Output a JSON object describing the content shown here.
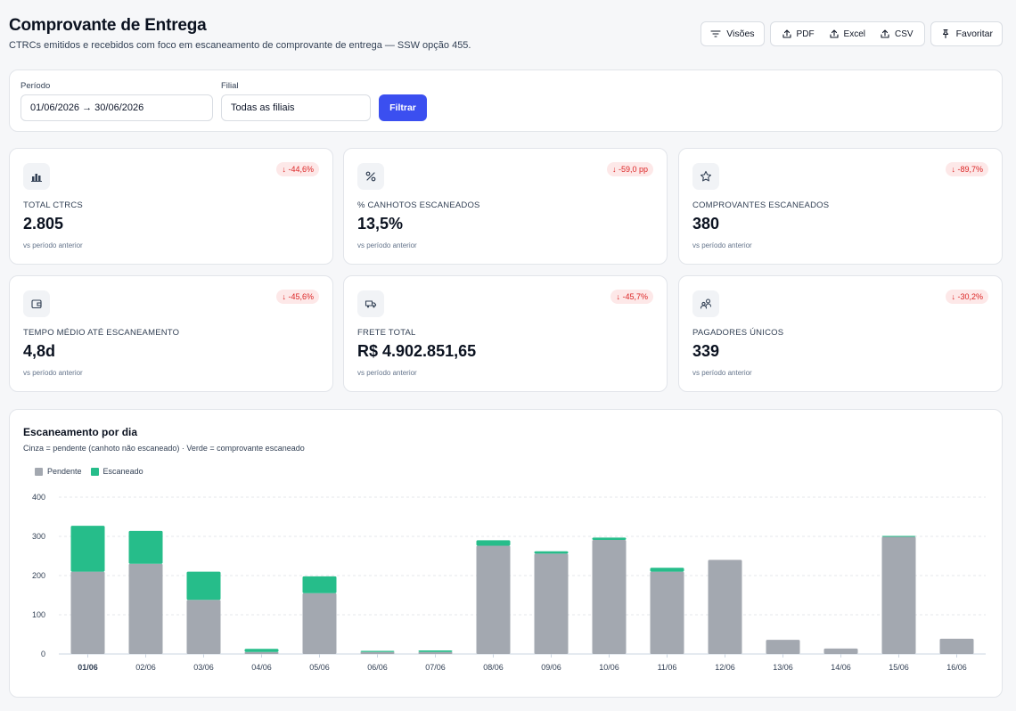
{
  "header": {
    "title": "Comprovante de Entrega",
    "subtitle": "CTRCs emitidos e recebidos com foco em escaneamento de comprovante de entrega — SSW opção 455.",
    "buttons": {
      "views": "Visões",
      "pdf": "PDF",
      "excel": "Excel",
      "csv": "CSV",
      "favorite": "Favoritar"
    }
  },
  "filters": {
    "period_label": "Período",
    "period_value": "01/06/2026 → 30/06/2026",
    "branch_label": "Filial",
    "branch_value": "Todas as filiais",
    "submit": "Filtrar"
  },
  "kpis": [
    {
      "icon": "bar-chart-icon",
      "label": "TOTAL CTRCS",
      "value": "2.805",
      "delta": "↓ -44,6%",
      "note": "vs período anterior"
    },
    {
      "icon": "percent-icon",
      "label": "% CANHOTOS ESCANEADOS",
      "value": "13,5%",
      "delta": "↓ -59,0 pp",
      "note": "vs período anterior"
    },
    {
      "icon": "star-icon",
      "label": "COMPROVANTES ESCANEADOS",
      "value": "380",
      "delta": "↓ -89,7%",
      "note": "vs período anterior"
    },
    {
      "icon": "wallet-icon",
      "label": "TEMPO MÉDIO ATÉ ESCANEAMENTO",
      "value": "4,8d",
      "delta": "↓ -45,6%",
      "note": "vs período anterior"
    },
    {
      "icon": "truck-icon",
      "label": "FRETE TOTAL",
      "value": "R$ 4.902.851,65",
      "delta": "↓ -45,7%",
      "note": "vs período anterior"
    },
    {
      "icon": "users-icon",
      "label": "PAGADORES ÚNICOS",
      "value": "339",
      "delta": "↓ -30,2%",
      "note": "vs período anterior"
    }
  ],
  "chart": {
    "title": "Escaneamento por dia",
    "subtitle": "Cinza = pendente (canhoto não escaneado) · Verde = comprovante escaneado"
  },
  "chart_data": {
    "type": "bar",
    "stacked": true,
    "categories": [
      "01/06",
      "02/06",
      "03/06",
      "04/06",
      "05/06",
      "06/06",
      "07/06",
      "08/06",
      "09/06",
      "10/06",
      "11/06",
      "12/06",
      "13/06",
      "14/06",
      "15/06",
      "16/06"
    ],
    "series": [
      {
        "name": "Pendente",
        "color": "#a3a8b0",
        "values": [
          210,
          230,
          138,
          5,
          155,
          5,
          5,
          276,
          256,
          291,
          210,
          240,
          36,
          14,
          299,
          39
        ]
      },
      {
        "name": "Escaneado",
        "color": "#26bd8a",
        "values": [
          117,
          84,
          72,
          8,
          43,
          3,
          4,
          14,
          6,
          6,
          10,
          0,
          0,
          0,
          2,
          0
        ]
      }
    ],
    "yticks": [
      0,
      100,
      200,
      300,
      400
    ],
    "ylim": [
      0,
      400
    ],
    "grid": true,
    "legend": "top-left"
  },
  "colors": {
    "accent": "#3b4ff0",
    "delta_negative": "#dc2626",
    "pending": "#a3a8b0",
    "scanned": "#26bd8a"
  }
}
